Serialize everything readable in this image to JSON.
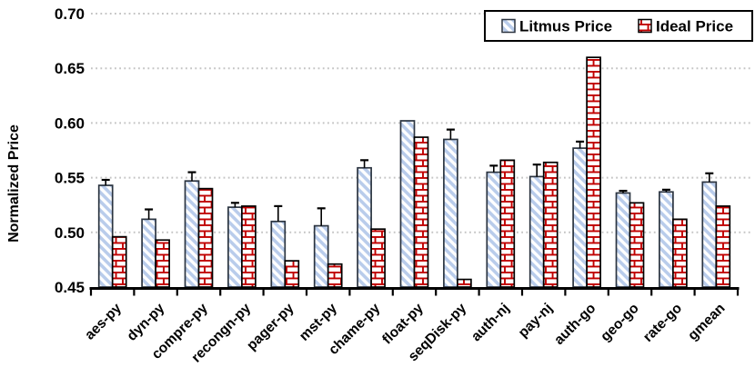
{
  "figure": {
    "background": "#ffffff"
  },
  "chart_data": {
    "type": "bar",
    "title": "",
    "xlabel": "",
    "ylabel": "Normalized Price",
    "ylim": [
      0.45,
      0.7
    ],
    "yticks": [
      0.45,
      0.5,
      0.55,
      0.6,
      0.65,
      0.7
    ],
    "ytick_labels": [
      "0.45",
      "0.50",
      "0.55",
      "0.60",
      "0.65",
      "0.70"
    ],
    "grid": "horizontal-dotted",
    "legend_position": "top-right-inside",
    "categories": [
      "aes-py",
      "dyn-py",
      "compre-py",
      "recongn-py",
      "pager-py",
      "mst-py",
      "chame-py",
      "float-py",
      "seqDisk-py",
      "auth-nj",
      "pay-nj",
      "auth-go",
      "geo-go",
      "rate-go",
      "gmean"
    ],
    "series": [
      {
        "name": "Litmus Price",
        "pattern": "diagonal-hatch",
        "values": [
          0.543,
          0.512,
          0.547,
          0.523,
          0.51,
          0.506,
          0.559,
          0.602,
          0.585,
          0.555,
          0.551,
          0.577,
          0.536,
          0.537,
          0.546
        ],
        "errors_plus": [
          0.005,
          0.009,
          0.008,
          0.004,
          0.014,
          0.016,
          0.007,
          0,
          0.009,
          0.006,
          0.011,
          0.006,
          0.002,
          0.002,
          0.008
        ]
      },
      {
        "name": "Ideal Price",
        "pattern": "brick",
        "values": [
          0.496,
          0.493,
          0.54,
          0.524,
          0.474,
          0.471,
          0.503,
          0.587,
          0.457,
          0.566,
          0.564,
          0.66,
          0.527,
          0.512,
          0.524
        ],
        "errors_plus": [
          0,
          0,
          0,
          0,
          0,
          0,
          0,
          0,
          0,
          0,
          0,
          0,
          0,
          0,
          0
        ]
      }
    ],
    "colors": {
      "litmus_fill": "#b9cceb",
      "litmus_stroke": "#2b3440",
      "ideal_red": "#c00000",
      "ideal_stroke": "#000000",
      "gridline": "#c4c4c4",
      "axis": "#000000",
      "legend_border": "#000000",
      "background": "#ffffff"
    }
  }
}
